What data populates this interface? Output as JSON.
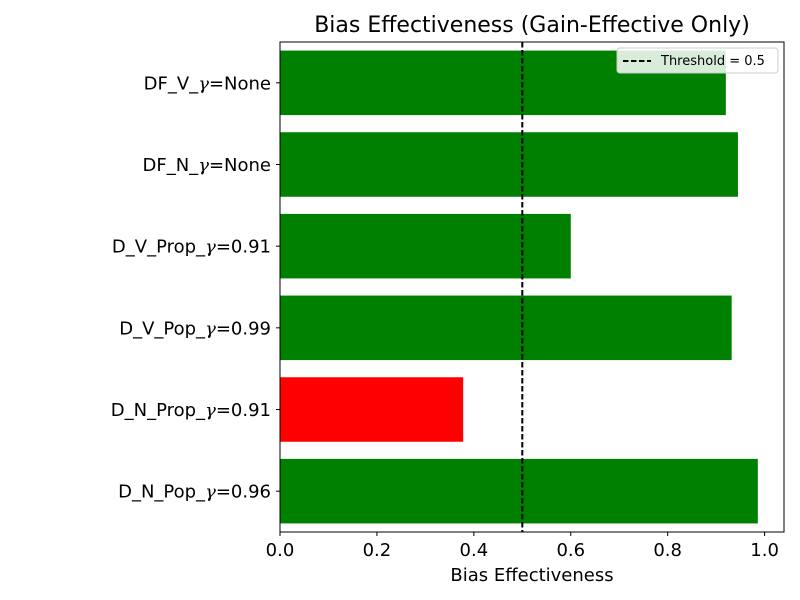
{
  "chart_data": {
    "type": "bar",
    "orientation": "horizontal",
    "title": "Bias Effectiveness (Gain-Effective Only)",
    "xlabel": "Bias Effectiveness",
    "ylabel": "",
    "xlim": [
      0.0,
      1.04
    ],
    "xticks": [
      0.0,
      0.2,
      0.4,
      0.6,
      0.8,
      1.0
    ],
    "xtick_labels": [
      "0.0",
      "0.2",
      "0.4",
      "0.6",
      "0.8",
      "1.0"
    ],
    "categories": [
      {
        "prefix": "DF_V_",
        "symbol": "γ",
        "suffix": "=None"
      },
      {
        "prefix": "DF_N_",
        "symbol": "γ",
        "suffix": "=None"
      },
      {
        "prefix": "D_V_Prop_",
        "symbol": "γ",
        "suffix": "=0.91"
      },
      {
        "prefix": "D_V_Pop_",
        "symbol": "γ",
        "suffix": "=0.99"
      },
      {
        "prefix": "D_N_Prop_",
        "symbol": "γ",
        "suffix": "=0.91"
      },
      {
        "prefix": "D_N_Pop_",
        "symbol": "γ",
        "suffix": "=0.96"
      }
    ],
    "values": [
      0.92,
      0.945,
      0.6,
      0.932,
      0.378,
      0.986
    ],
    "bar_colors": [
      "#008000",
      "#008000",
      "#008000",
      "#008000",
      "#ff0000",
      "#008000"
    ],
    "threshold": {
      "value": 0.5,
      "label": "Threshold = 0.5",
      "color": "#000000",
      "style": "dashed"
    },
    "legend_position": "top-right",
    "grid": false
  }
}
